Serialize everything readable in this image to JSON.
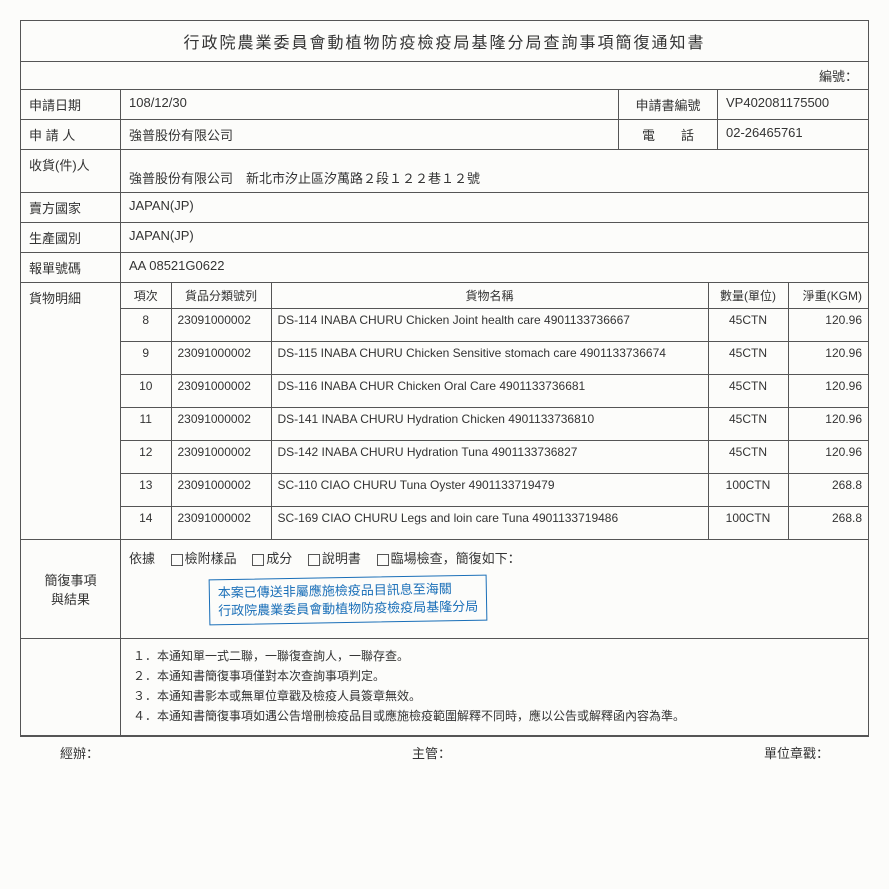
{
  "title": "行政院農業委員會動植物防疫檢疫局基隆分局查詢事項簡復通知書",
  "serial_label": "編號：",
  "fields": {
    "apply_date_label": "申請日期",
    "apply_date": "108/12/30",
    "apply_no_label": "申請書編號",
    "apply_no": "VP402081175500",
    "applicant_label": "申 請 人",
    "applicant": "強普股份有限公司",
    "phone_label": "電　　話",
    "phone": "02-26465761",
    "recipient_label": "收貨(件)人",
    "recipient": "強普股份有限公司　新北市汐止區汐萬路２段１２２巷１２號",
    "seller_country_label": "賣方國家",
    "seller_country": "JAPAN(JP)",
    "origin_country_label": "生產國別",
    "origin_country": "JAPAN(JP)",
    "decl_no_label": "報單號碼",
    "decl_no": "AA  08521G0622"
  },
  "items_label": "貨物明細",
  "items_headers": {
    "seq": "項次",
    "code": "貨品分類號列",
    "name": "貨物名稱",
    "qty": "數量(單位)",
    "weight": "淨重(KGM)"
  },
  "items": [
    {
      "seq": "8",
      "code": "23091000002",
      "name": "DS-114 INABA CHURU Chicken Joint health care 4901133736667",
      "qty": "45CTN",
      "weight": "120.96"
    },
    {
      "seq": "9",
      "code": "23091000002",
      "name": "DS-115 INABA CHURU Chicken Sensitive stomach care 4901133736674",
      "qty": "45CTN",
      "weight": "120.96"
    },
    {
      "seq": "10",
      "code": "23091000002",
      "name": "DS-116 INABA CHUR Chicken Oral Care 4901133736681",
      "qty": "45CTN",
      "weight": "120.96"
    },
    {
      "seq": "11",
      "code": "23091000002",
      "name": "DS-141 INABA CHURU Hydration Chicken 4901133736810",
      "qty": "45CTN",
      "weight": "120.96"
    },
    {
      "seq": "12",
      "code": "23091000002",
      "name": "DS-142 INABA CHURU Hydration Tuna 4901133736827",
      "qty": "45CTN",
      "weight": "120.96"
    },
    {
      "seq": "13",
      "code": "23091000002",
      "name": "SC-110 CIAO CHURU Tuna Oyster 4901133719479",
      "qty": "100CTN",
      "weight": "268.8"
    },
    {
      "seq": "14",
      "code": "23091000002",
      "name": "SC-169 CIAO CHURU Legs and loin care Tuna 4901133719486",
      "qty": "100CTN",
      "weight": "268.8"
    }
  ],
  "reply_label1": "簡復事項",
  "reply_label2": "與結果",
  "basis_label": "依據",
  "cb_sample": "檢附樣品",
  "cb_ingredient": "成分",
  "cb_manual": "說明書",
  "cb_onsite": "臨場檢查，簡復如下：",
  "stamp_line1": "本案已傳送非屬應施檢疫品目訊息至海關",
  "stamp_line2": "行政院農業委員會動植物防疫檢疫局基隆分局",
  "notes": [
    "１．本通知單一式二聯，一聯復查詢人，一聯存查。",
    "２．本通知書簡復事項僅對本次查詢事項判定。",
    "３．本通知書影本或無單位章戳及檢疫人員簽章無效。",
    "４．本通知書簡復事項如遇公告增刪檢疫品目或應施檢疫範圍解釋不同時，應以公告或解釋函內容為準。"
  ],
  "footer": {
    "handler": "經辦：",
    "supervisor": "主管：",
    "stamp": "單位章戳："
  }
}
